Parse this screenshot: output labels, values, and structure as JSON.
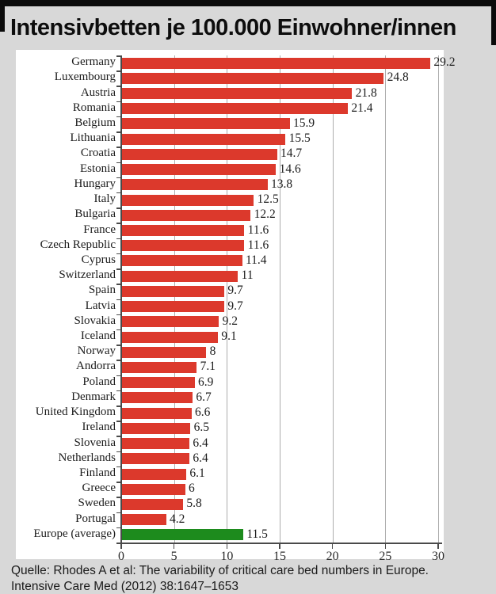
{
  "title": "Intensivbetten je 100.000 Einwohner/innen",
  "source": {
    "line1": "Quelle: Rhodes A et al: The variability of critical care bed numbers in Europe.",
    "line2": "Intensive Care Med (2012) 38:1647–1653"
  },
  "colors": {
    "bar_red": "#dc392c",
    "bar_green": "#1d8b1d",
    "background": "#d8d8d8",
    "panel": "#ffffff",
    "grid": "#adadad",
    "axis": "#4a4a4a",
    "top_bar": "#0b0b0b"
  },
  "chart_data": {
    "type": "bar",
    "orientation": "horizontal",
    "title": "Intensivbetten je 100.000 Einwohner/innen",
    "xlabel": "",
    "ylabel": "",
    "xlim": [
      0,
      30
    ],
    "xticks": [
      0,
      5,
      10,
      15,
      20,
      25,
      30
    ],
    "grid": true,
    "categories": [
      "Germany",
      "Luxembourg",
      "Austria",
      "Romania",
      "Belgium",
      "Lithuania",
      "Croatia",
      "Estonia",
      "Hungary",
      "Italy",
      "Bulgaria",
      "France",
      "Czech Republic",
      "Cyprus",
      "Switzerland",
      "Spain",
      "Latvia",
      "Slovakia",
      "Iceland",
      "Norway",
      "Andorra",
      "Poland",
      "Denmark",
      "United Kingdom",
      "Ireland",
      "Slovenia",
      "Netherlands",
      "Finland",
      "Greece",
      "Sweden",
      "Portugal",
      "Europe (average)"
    ],
    "values": [
      29.2,
      24.8,
      21.8,
      21.4,
      15.9,
      15.5,
      14.7,
      14.6,
      13.8,
      12.5,
      12.2,
      11.6,
      11.6,
      11.4,
      11,
      9.7,
      9.7,
      9.2,
      9.1,
      8,
      7.1,
      6.9,
      6.7,
      6.6,
      6.5,
      6.4,
      6.4,
      6.1,
      6,
      5.8,
      4.2,
      11.5
    ],
    "value_labels": [
      "29.2",
      "24.8",
      "21.8",
      "21.4",
      "15.9",
      "15.5",
      "14.7",
      "14.6",
      "13.8",
      "12.5",
      "12.2",
      "11.6",
      "11.6",
      "11.4",
      "11",
      "9.7",
      "9.7",
      "9.2",
      "9.1",
      "8",
      "7.1",
      "6.9",
      "6.7",
      "6.6",
      "6.5",
      "6.4",
      "6.4",
      "6.1",
      "6",
      "5.8",
      "4.2",
      "11.5"
    ],
    "highlight_category": "Europe (average)",
    "highlight_index": 31
  }
}
